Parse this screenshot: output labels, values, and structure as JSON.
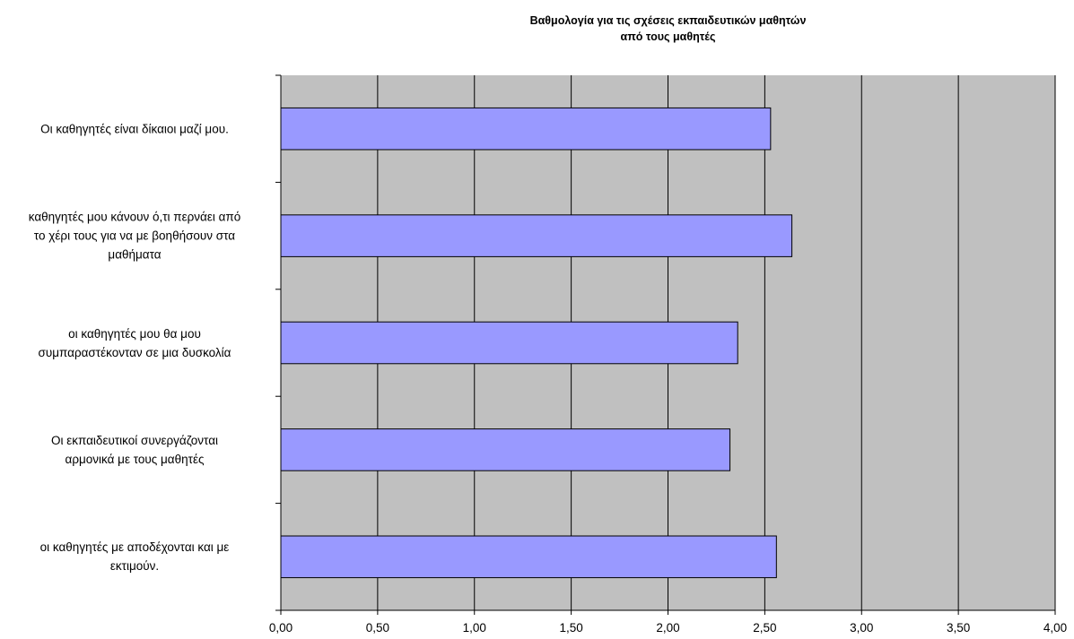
{
  "chart_data": {
    "type": "bar",
    "orientation": "horizontal",
    "title_lines": [
      "Βαθμολογία για τις σχέσεις εκπαιδευτικών μαθητών",
      "από τους μαθητές"
    ],
    "categories": [
      "Οι καθηγητές είναι δίκαιοι μαζί μου.",
      "καθηγητές μου κάνουν ό,τι περνάει από το χέρι τους για να με βοηθήσουν στα μαθήματα",
      "οι καθηγητές μου θα μου συμπαραστέκονταν σε μια δυσκολία",
      "Οι εκπαιδευτικοί συνεργάζονται αρμονικά με τους μαθητές",
      "οι καθηγητές με αποδέχονται και με εκτιμούν."
    ],
    "category_label_lines": [
      [
        "Οι καθηγητές είναι δίκαιοι μαζί μου."
      ],
      [
        "καθηγητές μου κάνουν ό,τι περνάει από",
        "το χέρι τους για να με βοηθήσουν στα",
        "μαθήματα"
      ],
      [
        "οι καθηγητές μου θα μου",
        "συμπαραστέκονταν σε μια δυσκολία"
      ],
      [
        "Οι εκπαιδευτικοί συνεργάζονται",
        "αρμονικά με τους μαθητές"
      ],
      [
        "οι καθηγητές με αποδέχονται και με",
        "εκτιμούν."
      ]
    ],
    "values": [
      2.53,
      2.64,
      2.36,
      2.32,
      2.56
    ],
    "xlim": [
      0,
      4
    ],
    "x_ticks": [
      "0,00",
      "0,50",
      "1,00",
      "1,50",
      "2,00",
      "2,50",
      "3,00",
      "3,50",
      "4,00"
    ],
    "grid": true,
    "legend": "none",
    "colors": {
      "bar_fill": "#9999ff",
      "bar_stroke": "#000000",
      "plot_background": "#c0c0c0",
      "gridline": "#000000"
    }
  }
}
